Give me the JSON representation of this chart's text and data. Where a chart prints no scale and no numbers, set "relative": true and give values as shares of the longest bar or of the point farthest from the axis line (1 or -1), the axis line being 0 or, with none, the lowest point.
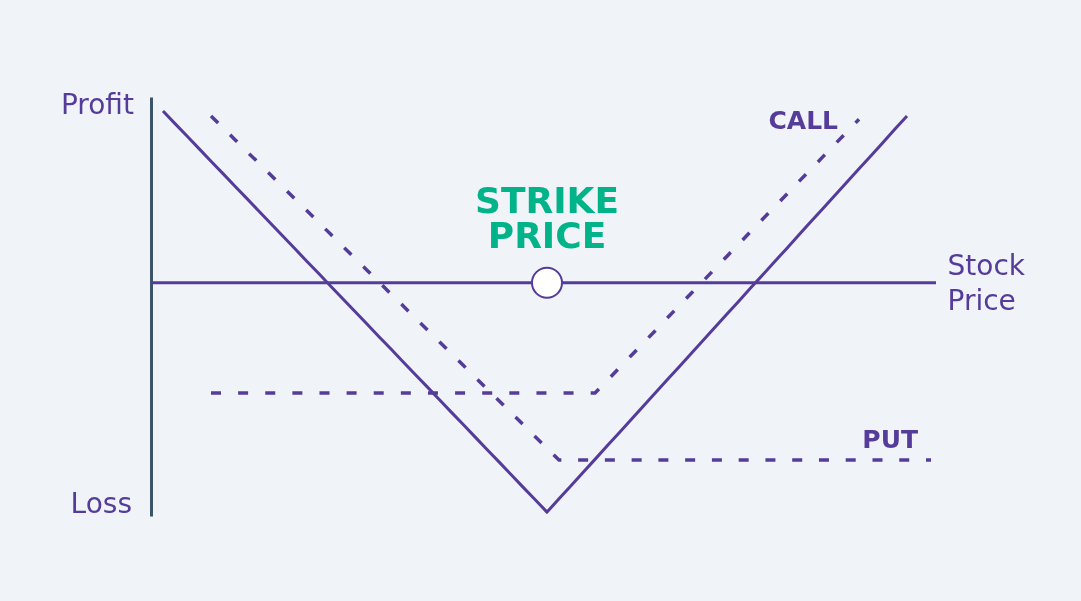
{
  "chart_data": {
    "type": "line",
    "relative": true,
    "grid": false,
    "legend": false,
    "marker": "none",
    "xlabel": "Stock Price",
    "annotations": [
      "Profit",
      "Loss",
      {
        "text": "STRIKE PRICE",
        "y": 0
      }
    ],
    "ref_lines": [
      {
        "axis": "y",
        "value": 0,
        "color": "#553c9a",
        "line_style": "solid"
      }
    ],
    "categories": [
      null,
      null,
      null,
      null,
      null,
      null,
      null,
      null,
      null,
      null,
      null,
      null,
      null,
      null,
      null,
      null,
      null,
      null,
      null,
      null,
      null,
      null,
      null,
      null,
      null,
      null,
      null,
      null,
      null,
      null,
      null,
      null,
      null,
      null,
      null,
      null,
      null,
      null,
      null,
      null,
      null,
      null,
      null,
      null,
      null,
      null,
      null,
      null,
      null,
      null,
      null,
      null,
      null,
      null,
      null,
      null,
      null,
      null,
      null,
      null,
      null,
      null,
      null,
      null,
      null
    ],
    "series": [
      {
        "color": "#553c9a",
        "line_style": "solid",
        "values": [
          0.749,
          0.694,
          0.64,
          0.585,
          0.53,
          0.476,
          0.421,
          0.367,
          0.312,
          0.257,
          0.203,
          0.148,
          0.093,
          0.039,
          -0.016,
          -0.071,
          -0.125,
          -0.18,
          -0.235,
          -0.289,
          -0.344,
          -0.399,
          -0.453,
          -0.508,
          -0.563,
          -0.617,
          -0.672,
          -0.727,
          -0.781,
          -0.836,
          -0.891,
          -0.945,
          -1,
          -0.942,
          -0.885,
          -0.827,
          -0.77,
          -0.712,
          -0.655,
          -0.597,
          -0.539,
          -0.482,
          -0.424,
          -0.367,
          -0.309,
          -0.252,
          -0.194,
          -0.136,
          -0.079,
          -0.021,
          0.036,
          0.094,
          0.151,
          0.209,
          0.267,
          0.324,
          0.382,
          0.439,
          0.497,
          0.554,
          0.612,
          0.67,
          0.727,
          null,
          null
        ]
      },
      {
        "name": "CALL",
        "color": "#553c9a",
        "line_style": "dashed",
        "values": [
          null,
          null,
          null,
          null,
          -0.481,
          -0.481,
          -0.481,
          -0.481,
          -0.481,
          -0.481,
          -0.481,
          -0.481,
          -0.481,
          -0.481,
          -0.481,
          -0.481,
          -0.481,
          -0.481,
          -0.481,
          -0.481,
          -0.481,
          -0.481,
          -0.481,
          -0.481,
          -0.481,
          -0.481,
          -0.481,
          -0.481,
          -0.481,
          -0.481,
          -0.481,
          -0.481,
          -0.481,
          -0.481,
          -0.481,
          -0.481,
          -0.481,
          -0.427,
          -0.372,
          -0.318,
          -0.264,
          -0.21,
          -0.155,
          -0.101,
          -0.047,
          0.007,
          0.062,
          0.116,
          0.17,
          0.225,
          0.279,
          0.333,
          0.387,
          0.442,
          0.496,
          0.55,
          0.604,
          0.659,
          0.713,
          null,
          null,
          null,
          null,
          null,
          null
        ]
      },
      {
        "name": "PUT",
        "color": "#553c9a",
        "line_style": "dashed",
        "values": [
          null,
          null,
          null,
          null,
          0.727,
          0.676,
          0.624,
          0.572,
          0.521,
          0.469,
          0.417,
          0.365,
          0.314,
          0.262,
          0.21,
          0.158,
          0.107,
          0.055,
          0.003,
          -0.049,
          -0.1,
          -0.152,
          -0.204,
          -0.256,
          -0.307,
          -0.359,
          -0.411,
          -0.463,
          -0.514,
          -0.566,
          -0.618,
          -0.67,
          -0.721,
          -0.773,
          -0.773,
          -0.773,
          -0.773,
          -0.773,
          -0.773,
          -0.773,
          -0.773,
          -0.773,
          -0.773,
          -0.773,
          -0.773,
          -0.773,
          -0.773,
          -0.773,
          -0.773,
          -0.773,
          -0.773,
          -0.773,
          -0.773,
          -0.773,
          -0.773,
          -0.773,
          -0.773,
          -0.773,
          -0.773,
          -0.773,
          -0.773,
          -0.773,
          -0.773,
          -0.773,
          -0.773
        ]
      }
    ]
  }
}
